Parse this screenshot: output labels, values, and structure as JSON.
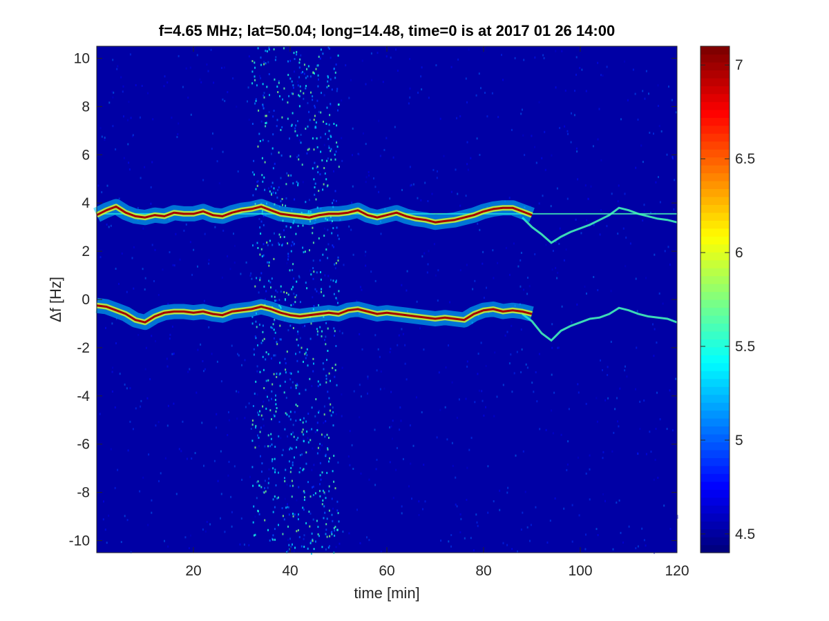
{
  "chart_data": {
    "type": "heatmap",
    "title": "f=4.65 MHz;  lat=50.04; long=14.48, time=0 is at 2017 01 26 14:00",
    "xlabel": "time [min]",
    "ylabel": "Δf [Hz]",
    "xlim": [
      0,
      120
    ],
    "ylim": [
      -10.5,
      10.5
    ],
    "xticks": [
      20,
      40,
      60,
      80,
      100,
      120
    ],
    "yticks": [
      -10,
      -8,
      -6,
      -4,
      -2,
      0,
      2,
      4,
      6,
      8,
      10
    ],
    "colorbar": {
      "colormap": "jet",
      "range": [
        4.4,
        7.1
      ],
      "ticks": [
        4.5,
        5,
        5.5,
        6,
        6.5,
        7
      ]
    },
    "background_value": 4.5,
    "noisy_time_band": {
      "x_range": [
        32,
        50
      ],
      "value": 5.4
    },
    "series": [
      {
        "x": [
          0,
          2,
          4,
          6,
          8,
          10,
          12,
          14,
          16,
          18,
          20,
          22,
          24,
          26,
          28,
          30,
          32,
          34,
          36,
          38,
          40,
          42,
          44,
          46,
          48,
          50,
          52,
          54,
          56,
          58,
          60,
          62,
          64,
          66,
          68,
          70,
          72,
          74,
          76,
          78,
          80,
          82,
          84,
          86,
          88,
          90
        ],
        "y": [
          3.5,
          3.7,
          3.85,
          3.6,
          3.45,
          3.4,
          3.5,
          3.45,
          3.6,
          3.55,
          3.55,
          3.65,
          3.5,
          3.45,
          3.6,
          3.7,
          3.75,
          3.85,
          3.7,
          3.55,
          3.5,
          3.45,
          3.4,
          3.5,
          3.55,
          3.55,
          3.6,
          3.7,
          3.5,
          3.4,
          3.5,
          3.6,
          3.45,
          3.35,
          3.3,
          3.2,
          3.25,
          3.3,
          3.4,
          3.5,
          3.65,
          3.75,
          3.8,
          3.8,
          3.65,
          3.5
        ]
      },
      {
        "x": [
          0,
          2,
          4,
          6,
          8,
          10,
          12,
          14,
          16,
          18,
          20,
          22,
          24,
          26,
          28,
          30,
          32,
          34,
          36,
          38,
          40,
          42,
          44,
          46,
          48,
          50,
          52,
          54,
          56,
          58,
          60,
          62,
          64,
          66,
          68,
          70,
          72,
          74,
          76,
          78,
          80,
          82,
          84,
          86,
          88,
          90
        ],
        "y": [
          -0.25,
          -0.3,
          -0.45,
          -0.6,
          -0.85,
          -0.95,
          -0.7,
          -0.55,
          -0.5,
          -0.5,
          -0.55,
          -0.5,
          -0.6,
          -0.65,
          -0.5,
          -0.45,
          -0.4,
          -0.3,
          -0.4,
          -0.55,
          -0.65,
          -0.7,
          -0.65,
          -0.6,
          -0.55,
          -0.6,
          -0.45,
          -0.4,
          -0.5,
          -0.6,
          -0.55,
          -0.6,
          -0.65,
          -0.7,
          -0.75,
          -0.8,
          -0.75,
          -0.8,
          -0.85,
          -0.6,
          -0.45,
          -0.4,
          -0.5,
          -0.45,
          -0.5,
          -0.6
        ]
      }
    ],
    "faint_traces": [
      {
        "x": [
          88,
          90,
          92,
          94,
          96,
          98,
          100,
          102,
          104,
          106,
          108,
          110,
          112,
          114,
          116,
          118,
          120
        ],
        "y": [
          3.4,
          3.0,
          2.7,
          2.35,
          2.6,
          2.8,
          2.95,
          3.1,
          3.3,
          3.5,
          3.8,
          3.7,
          3.55,
          3.45,
          3.35,
          3.3,
          3.2
        ]
      },
      {
        "x": [
          88,
          90,
          92,
          94,
          96,
          98,
          100,
          102,
          104,
          106,
          108,
          110,
          112,
          114,
          116,
          118,
          120
        ],
        "y": [
          -0.6,
          -0.9,
          -1.4,
          -1.7,
          -1.3,
          -1.1,
          -0.95,
          -0.8,
          -0.75,
          -0.6,
          -0.35,
          -0.45,
          -0.6,
          -0.7,
          -0.75,
          -0.8,
          -0.95
        ]
      }
    ],
    "carrier_line": {
      "y": 3.55,
      "x_range": [
        0,
        120
      ]
    }
  }
}
